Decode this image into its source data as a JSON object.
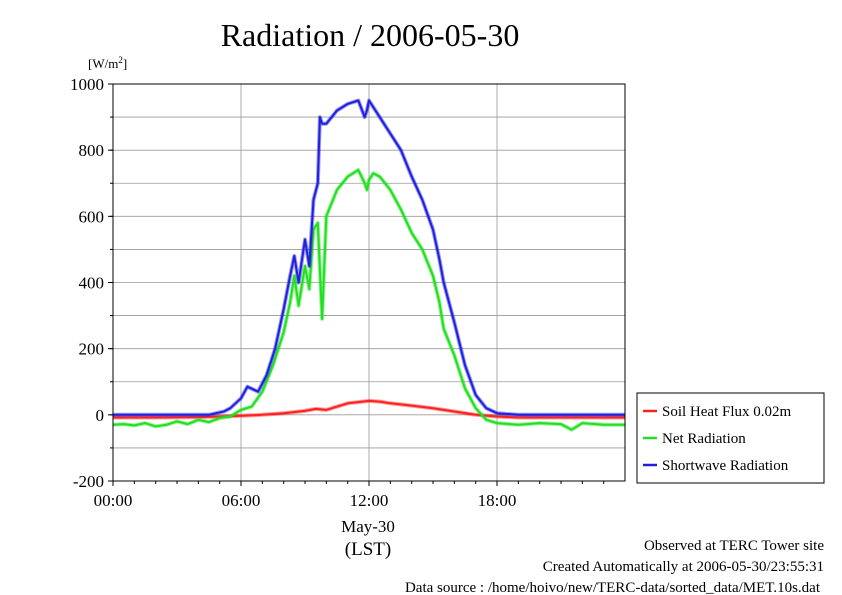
{
  "chart_data": {
    "type": "line",
    "title": "Radiation / 2006-05-30",
    "ylabel": "[W/m2]",
    "ylim": [
      -200,
      1000
    ],
    "yticks": [
      -200,
      0,
      200,
      400,
      600,
      800,
      1000
    ],
    "xlim": [
      0,
      24
    ],
    "xticks": [
      {
        "value": 0,
        "label": "00:00"
      },
      {
        "value": 6,
        "label": "06:00"
      },
      {
        "value": 12,
        "label": "12:00"
      },
      {
        "value": 18,
        "label": "18:00"
      }
    ],
    "date_label": "May-30",
    "xlabel": "(LST)",
    "grid": true,
    "legend_position": "right-bottom",
    "series": [
      {
        "name": "Soil Heat Flux 0.02m",
        "color": "#ff2020",
        "x": [
          0,
          2,
          4,
          5,
          6,
          7,
          8,
          9,
          9.5,
          10,
          11,
          12,
          12.5,
          13,
          14,
          15,
          16,
          17,
          18,
          19,
          20,
          22,
          24
        ],
        "y": [
          -8,
          -8,
          -7,
          -5,
          -3,
          0,
          5,
          12,
          18,
          15,
          35,
          42,
          40,
          35,
          28,
          20,
          10,
          0,
          -5,
          -8,
          -8,
          -8,
          -8
        ]
      },
      {
        "name": "Net Radiation",
        "color": "#20e020",
        "x": [
          0,
          0.5,
          1,
          1.5,
          2,
          2.5,
          3,
          3.5,
          4,
          4.5,
          5,
          5.5,
          6,
          6.5,
          7,
          7.5,
          8,
          8.3,
          8.5,
          8.7,
          9,
          9.2,
          9.4,
          9.6,
          9.8,
          10,
          10.5,
          11,
          11.5,
          11.8,
          11.9,
          12,
          12.2,
          12.5,
          13,
          13.5,
          14,
          14.5,
          15,
          15.3,
          15.5,
          16,
          16.5,
          17,
          17.5,
          18,
          19,
          20,
          21,
          21.5,
          22,
          23,
          24
        ],
        "y": [
          -30,
          -28,
          -32,
          -25,
          -35,
          -30,
          -20,
          -28,
          -15,
          -22,
          -10,
          -5,
          15,
          25,
          70,
          150,
          250,
          340,
          420,
          330,
          450,
          380,
          560,
          580,
          290,
          600,
          680,
          720,
          740,
          700,
          680,
          710,
          730,
          720,
          680,
          620,
          550,
          500,
          420,
          340,
          260,
          180,
          80,
          20,
          -15,
          -25,
          -30,
          -25,
          -28,
          -45,
          -25,
          -30,
          -30
        ]
      },
      {
        "name": "Shortwave Radiation",
        "color": "#2020e0",
        "x": [
          0,
          3,
          4.5,
          5.2,
          5.5,
          6,
          6.3,
          6.8,
          7.2,
          7.6,
          8,
          8.3,
          8.5,
          8.7,
          9,
          9.2,
          9.4,
          9.6,
          9.7,
          9.8,
          10,
          10.5,
          11,
          11.5,
          11.8,
          11.9,
          12,
          12.2,
          12.5,
          13,
          13.5,
          14,
          14.5,
          15,
          15.3,
          15.5,
          16,
          16.5,
          17,
          17.5,
          18,
          19,
          20,
          21,
          22,
          23,
          24
        ],
        "y": [
          0,
          0,
          0,
          10,
          20,
          50,
          85,
          70,
          120,
          200,
          320,
          420,
          480,
          400,
          530,
          450,
          650,
          700,
          900,
          880,
          880,
          920,
          940,
          950,
          900,
          920,
          950,
          930,
          900,
          850,
          800,
          720,
          650,
          560,
          470,
          400,
          280,
          150,
          60,
          20,
          5,
          0,
          0,
          0,
          0,
          0,
          0
        ]
      }
    ],
    "footer": {
      "site": "Observed at TERC Tower site",
      "created": "Created Automatically at 2006-05-30/23:55:31",
      "source": "Data source : /home/hoivo/new/TERC-data/sorted_data/MET.10s.dat"
    }
  }
}
